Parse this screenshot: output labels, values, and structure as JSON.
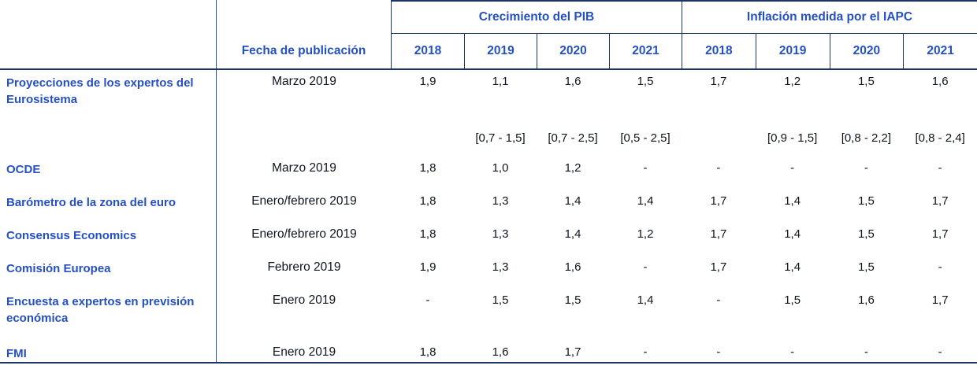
{
  "colors": {
    "heading_blue": "#2450C0",
    "rule_navy": "#1C3664",
    "value_text": "#10141F",
    "background": "#FFFFFF"
  },
  "table": {
    "header": {
      "fecha_label": "Fecha de publicación",
      "groups": [
        {
          "label": "Crecimiento del PIB",
          "years": [
            "2018",
            "2019",
            "2020",
            "2021"
          ]
        },
        {
          "label": "Inflación medida por el IAPC",
          "years": [
            "2018",
            "2019",
            "2020",
            "2021"
          ]
        }
      ]
    },
    "rows": [
      {
        "label": "Proyecciones de los expertos del Eurosistema",
        "date": "Marzo 2019",
        "values": [
          "1,9",
          "1,1",
          "1,6",
          "1,5",
          "1,7",
          "1,2",
          "1,5",
          "1,6"
        ]
      },
      {
        "label": "",
        "date": "",
        "values": [
          "",
          "[0,7 - 1,5]",
          "[0,7 - 2,5]",
          "[0,5 - 2,5]",
          "",
          "[0,9 - 1,5]",
          "[0,8 - 2,2]",
          "[0,8 - 2,4]"
        ]
      },
      {
        "label": "OCDE",
        "date": "Marzo 2019",
        "values": [
          "1,8",
          "1,0",
          "1,2",
          "-",
          "-",
          "-",
          "-",
          "-"
        ]
      },
      {
        "label": "Barómetro de la zona del euro",
        "date": "Enero/febrero 2019",
        "values": [
          "1,8",
          "1,3",
          "1,4",
          "1,4",
          "1,7",
          "1,4",
          "1,5",
          "1,7"
        ]
      },
      {
        "label": "Consensus Economics",
        "date": "Enero/febrero 2019",
        "values": [
          "1,8",
          "1,3",
          "1,4",
          "1,2",
          "1,7",
          "1,4",
          "1,5",
          "1,7"
        ]
      },
      {
        "label": "Comisión Europea",
        "date": "Febrero 2019",
        "values": [
          "1,9",
          "1,3",
          "1,6",
          "-",
          "1,7",
          "1,4",
          "1,5",
          "-"
        ]
      },
      {
        "label": "Encuesta a expertos en previsión económica",
        "date": "Enero 2019",
        "values": [
          "-",
          "1,5",
          "1,5",
          "1,4",
          "-",
          "1,5",
          "1,6",
          "1,7"
        ]
      },
      {
        "label": "FMI",
        "date": "Enero 2019",
        "values": [
          "1,8",
          "1,6",
          "1,7",
          "-",
          "-",
          "-",
          "-",
          "-"
        ]
      }
    ]
  }
}
